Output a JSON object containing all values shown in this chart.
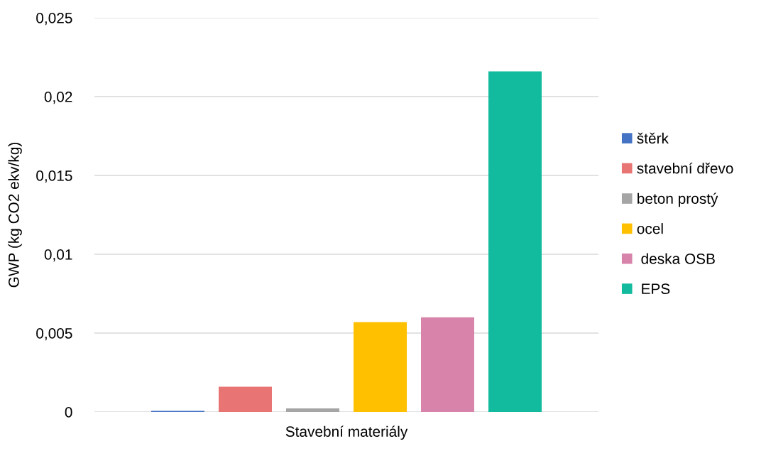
{
  "chart_data": {
    "type": "bar",
    "ylabel": "GWP (kg CO2 ekv/kg)",
    "categories": [
      "Stavební materiály"
    ],
    "series": [
      {
        "name": "štěrk",
        "color": "#4472c4",
        "values": [
          7e-05
        ]
      },
      {
        "name": "stavební dřevo",
        "color": "#e87474",
        "values": [
          0.0016
        ]
      },
      {
        "name": "beton prostý",
        "color": "#a5a5a5",
        "values": [
          0.00023
        ]
      },
      {
        "name": "ocel",
        "color": "#ffc000",
        "values": [
          0.0057
        ]
      },
      {
        "name": " deska OSB",
        "color": "#d884aa",
        "values": [
          0.006
        ]
      },
      {
        "name": " EPS",
        "color": "#13bb9e",
        "values": [
          0.0216
        ]
      }
    ],
    "ylim": [
      0,
      0.025
    ],
    "yticks": [
      0,
      {
        "value": 0.005,
        "label": "0,005"
      },
      {
        "value": 0.01,
        "label": "0,01"
      },
      {
        "value": 0.015,
        "label": "0,015"
      },
      {
        "value": 0.02,
        "label": "0,02"
      },
      {
        "value": 0.025,
        "label": "0,025"
      }
    ],
    "grid": "y",
    "legend": "right"
  }
}
